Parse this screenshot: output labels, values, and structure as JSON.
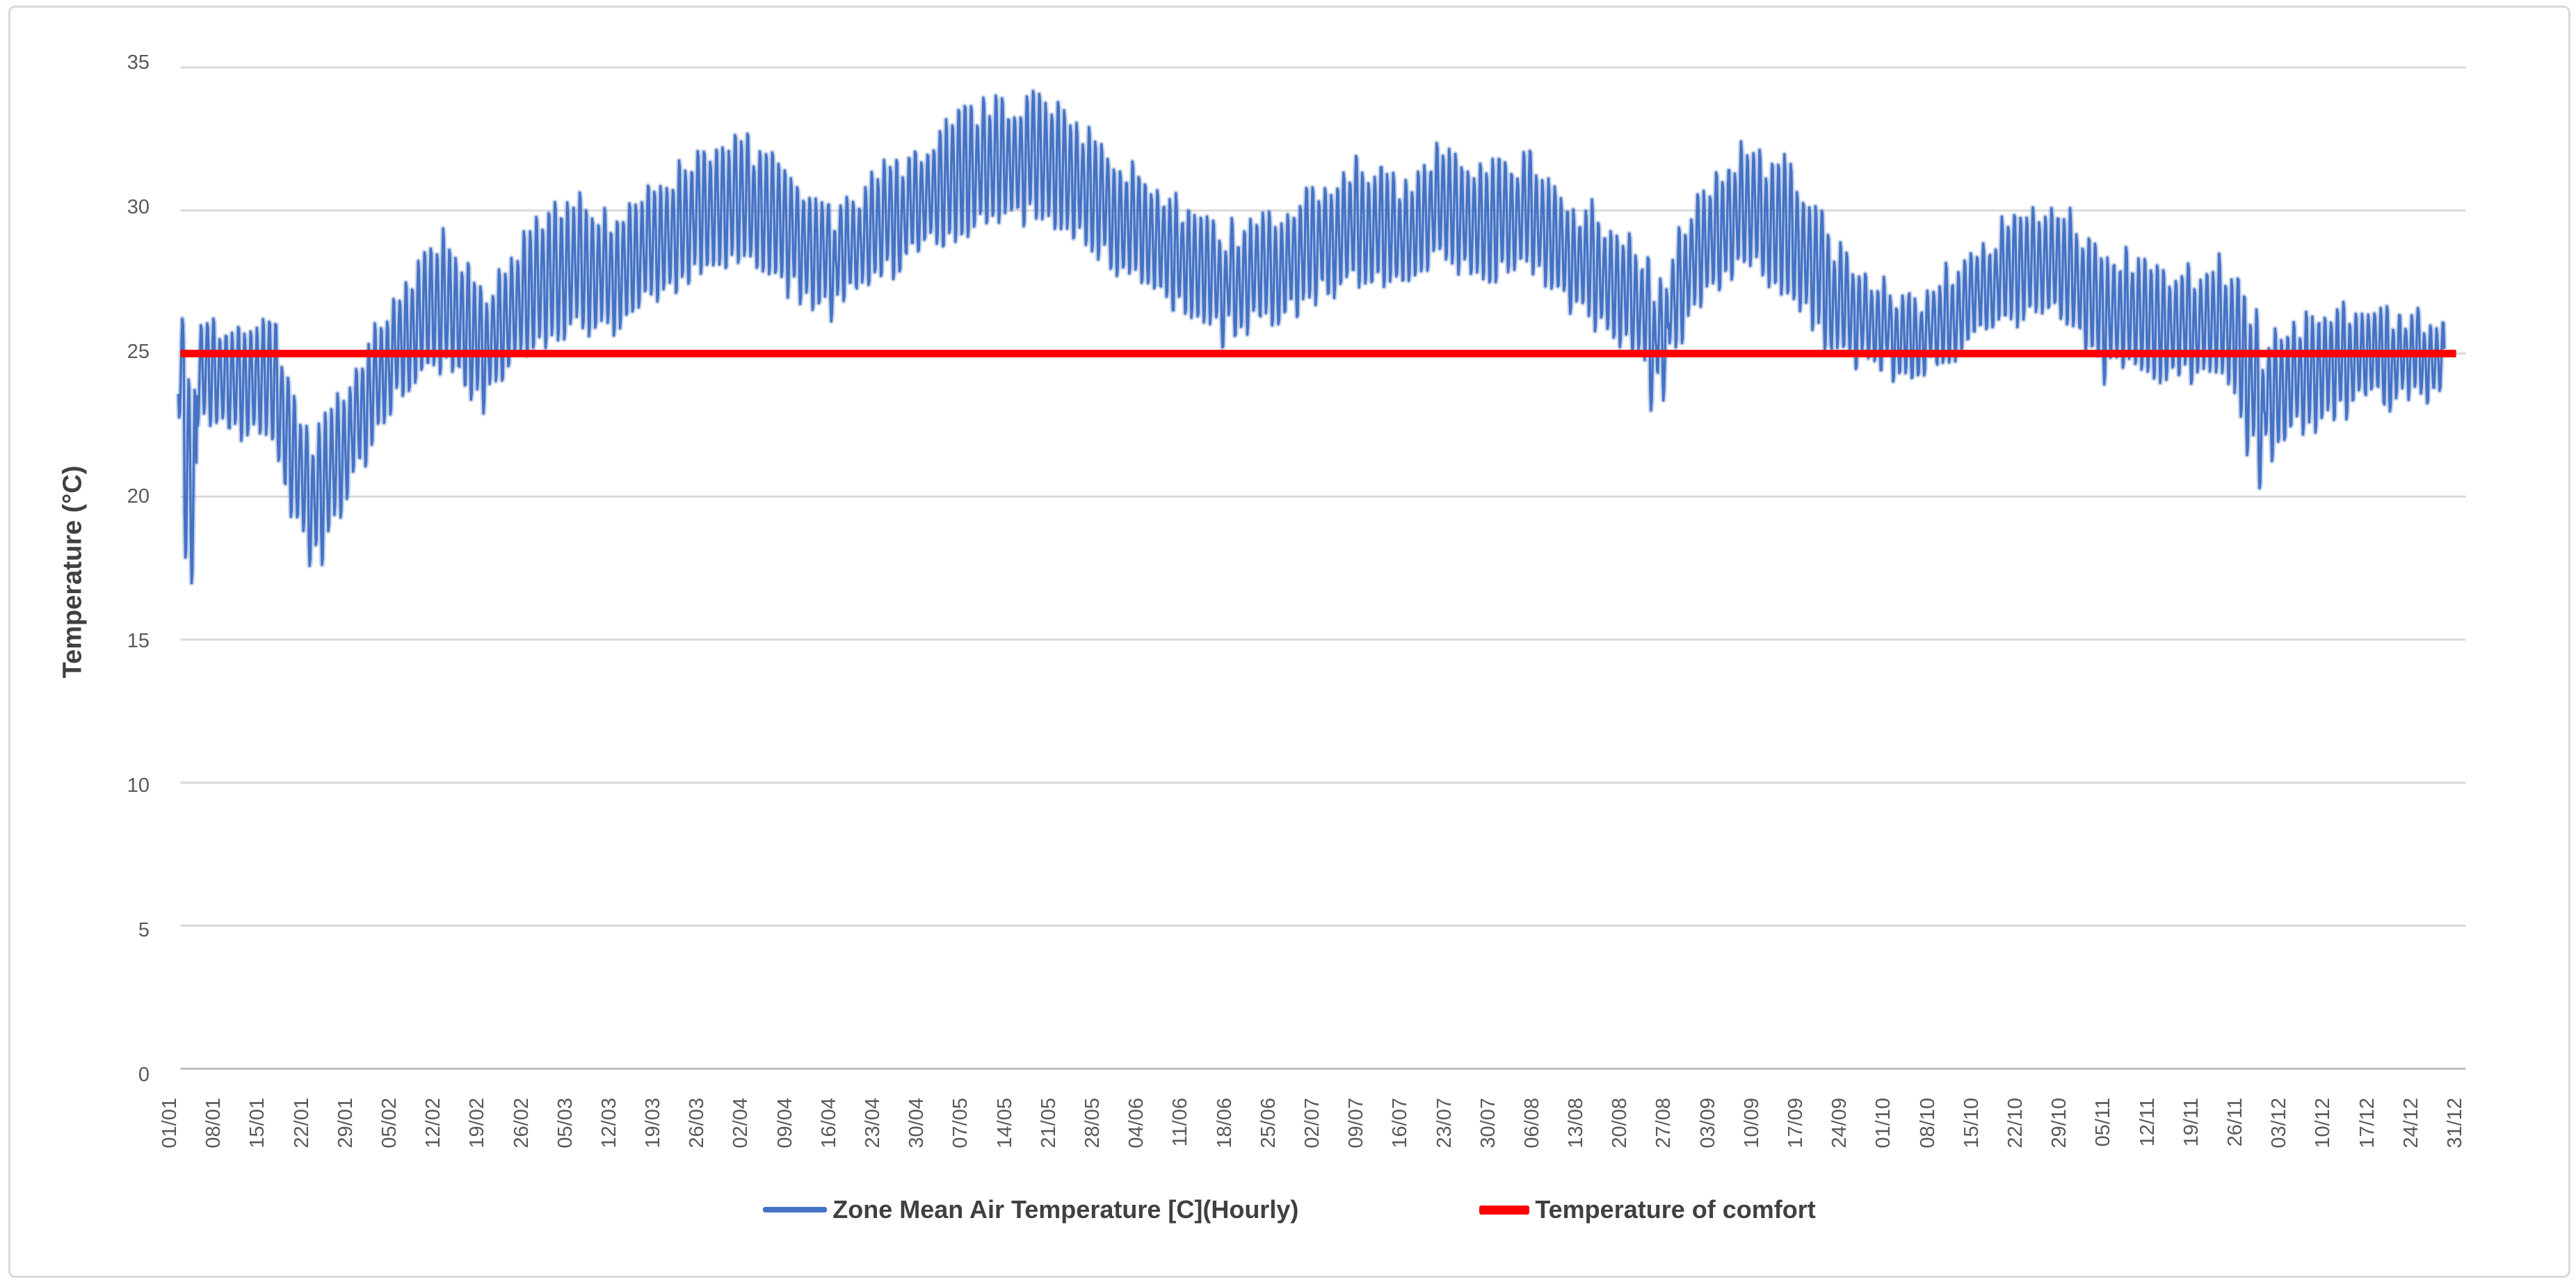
{
  "frame": {
    "background": "#FFFFFF",
    "border_color": "#D9D9D9"
  },
  "axis_style": {
    "tick_color": "#595959",
    "title_color": "#404040",
    "gridline_color": "#D9D9D9",
    "axis_line_color": "#BFBFBF"
  },
  "chart_data": {
    "type": "line",
    "title": "",
    "xlabel": "",
    "ylabel": "Temperature (°C)",
    "ylim": [
      0,
      35
    ],
    "y_ticks": [
      0,
      5,
      10,
      15,
      20,
      25,
      30,
      35
    ],
    "grid": "horizontal",
    "legend_position": "bottom",
    "x_tick_labels": [
      "01/01",
      "08/01",
      "15/01",
      "22/01",
      "29/01",
      "05/02",
      "12/02",
      "19/02",
      "26/02",
      "05/03",
      "12/03",
      "19/03",
      "26/03",
      "02/04",
      "09/04",
      "16/04",
      "23/04",
      "30/04",
      "07/05",
      "14/05",
      "21/05",
      "28/05",
      "04/06",
      "11/06",
      "18/06",
      "25/06",
      "02/07",
      "09/07",
      "16/07",
      "23/07",
      "30/07",
      "06/08",
      "13/08",
      "20/08",
      "27/08",
      "03/09",
      "10/09",
      "17/09",
      "24/09",
      "01/10",
      "08/10",
      "15/10",
      "22/10",
      "29/10",
      "05/11",
      "12/11",
      "19/11",
      "26/11",
      "03/12",
      "10/12",
      "17/12",
      "24/12",
      "31/12"
    ],
    "series": [
      {
        "name": "Zone Mean Air Temperature [C](Hourly)",
        "color": "#4472C4",
        "type": "hourly_line",
        "sampling": "hourly values for a full year; envelope read from chart at weekly resolution",
        "weekly": {
          "labels": [
            "01/01",
            "08/01",
            "15/01",
            "22/01",
            "29/01",
            "05/02",
            "12/02",
            "19/02",
            "26/02",
            "05/03",
            "12/03",
            "19/03",
            "26/03",
            "02/04",
            "09/04",
            "16/04",
            "23/04",
            "30/04",
            "07/05",
            "14/05",
            "21/05",
            "28/05",
            "04/06",
            "11/06",
            "18/06",
            "25/06",
            "02/07",
            "09/07",
            "16/07",
            "23/07",
            "30/07",
            "06/08",
            "13/08",
            "20/08",
            "27/08",
            "03/09",
            "10/09",
            "17/09",
            "24/09",
            "01/10",
            "08/10",
            "15/10",
            "22/10",
            "29/10",
            "05/11",
            "12/11",
            "19/11",
            "26/11",
            "03/12",
            "10/12",
            "17/12",
            "24/12",
            "31/12"
          ],
          "daily_high": [
            26.6,
            26.0,
            26.3,
            21.8,
            24.5,
            27.5,
            29.0,
            26.8,
            29.3,
            30.4,
            29.6,
            31.0,
            31.8,
            32.4,
            31.0,
            29.8,
            31.3,
            32.2,
            33.4,
            33.7,
            33.9,
            32.3,
            31.2,
            30.2,
            29.2,
            29.6,
            30.6,
            31.6,
            30.8,
            32.0,
            31.4,
            31.8,
            30.2,
            29.4,
            27.8,
            30.8,
            32.0,
            31.4,
            28.8,
            27.4,
            27.0,
            28.2,
            29.4,
            30.4,
            28.6,
            28.4,
            27.6,
            28.0,
            25.6,
            26.2,
            26.3,
            26.3,
            26.0
          ],
          "daily_low": [
            22.5,
            22.5,
            22.2,
            17.8,
            20.5,
            23.5,
            24.5,
            23.3,
            25.0,
            26.0,
            25.8,
            27.0,
            27.8,
            28.2,
            27.3,
            26.5,
            27.5,
            28.5,
            29.3,
            29.6,
            29.8,
            28.8,
            27.6,
            26.6,
            25.8,
            26.2,
            26.8,
            27.8,
            27.2,
            28.2,
            27.6,
            27.9,
            26.6,
            25.9,
            24.2,
            26.8,
            28.0,
            27.4,
            25.0,
            24.6,
            24.4,
            25.2,
            26.0,
            26.6,
            24.8,
            24.6,
            24.2,
            24.0,
            21.8,
            22.6,
            23.2,
            23.4,
            23.6
          ]
        },
        "extremes": {
          "annual_max": 33.9,
          "annual_min": 16.9
        },
        "events": [
          {
            "day": 1,
            "high": 24.2,
            "low": 17.7
          },
          {
            "day": 2,
            "high": 23.8,
            "low": 16.9
          },
          {
            "day": 23,
            "low": 17.5
          },
          {
            "day": 168,
            "low": 25.1
          },
          {
            "day": 237,
            "high": 26.8,
            "low": 23.0
          },
          {
            "day": 239,
            "high": 27.2,
            "low": 23.4
          },
          {
            "day": 310,
            "low": 23.8
          },
          {
            "day": 333,
            "low": 21.5
          },
          {
            "day": 335,
            "high": 24.5,
            "low": 20.3
          },
          {
            "day": 337,
            "low": 21.2
          }
        ]
      },
      {
        "name": "Temperature of comfort",
        "color": "#FF0000",
        "type": "constant",
        "value": 25
      }
    ]
  }
}
